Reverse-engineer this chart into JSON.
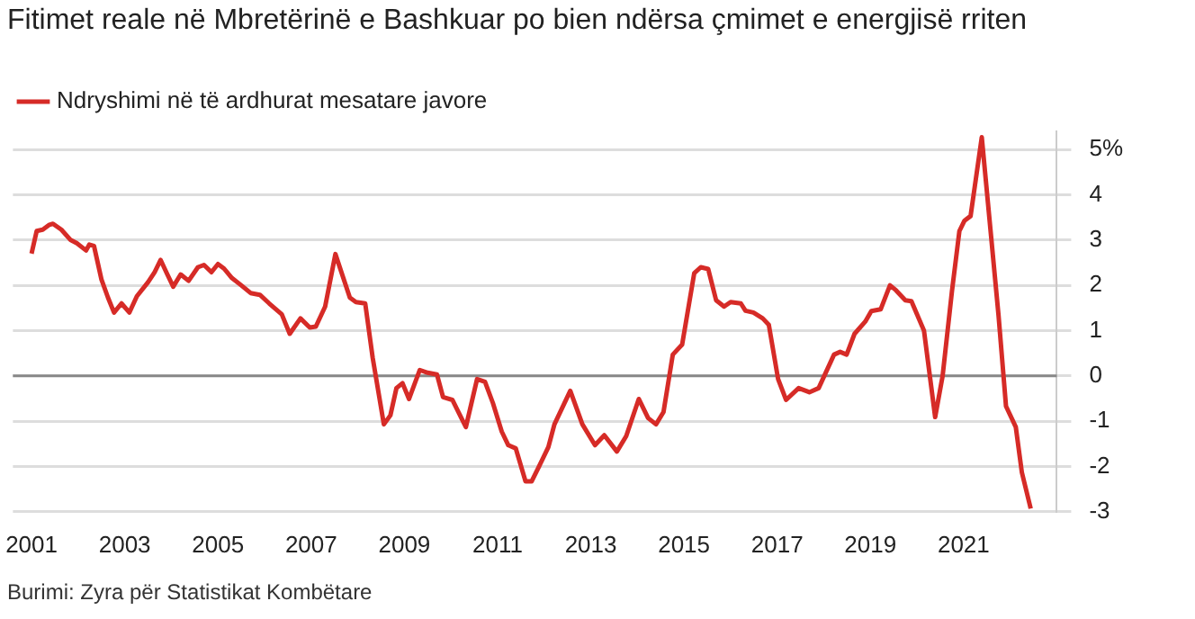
{
  "chart_data": {
    "type": "line",
    "title": "Fitimet reale në Mbretërinë e Bashkuar po bien ndërsa çmimet e energjisë rriten",
    "annotations": [
      "Burimi: Zyra për Statistikat Kombëtare"
    ],
    "series": [
      {
        "name": "Ndryshimi në të ardhurat mesatare javore",
        "color": "#d62b27",
        "x": [
          2001.0,
          2001.11,
          2001.24,
          2001.37,
          2001.46,
          2001.64,
          2001.84,
          2001.97,
          2002.17,
          2002.24,
          2002.34,
          2002.5,
          2002.64,
          2002.77,
          2002.93,
          2003.1,
          2003.26,
          2003.5,
          2003.64,
          2003.77,
          2003.9,
          2004.04,
          2004.2,
          2004.37,
          2004.57,
          2004.7,
          2004.86,
          2005.0,
          2005.13,
          2005.3,
          2005.5,
          2005.7,
          2005.9,
          2006.1,
          2006.37,
          2006.54,
          2006.77,
          2006.97,
          2007.1,
          2007.3,
          2007.52,
          2007.83,
          2007.96,
          2008.16,
          2008.32,
          2008.56,
          2008.7,
          2008.83,
          2008.96,
          2009.1,
          2009.33,
          2009.5,
          2009.7,
          2009.83,
          2010.03,
          2010.32,
          2010.56,
          2010.73,
          2010.9,
          2011.09,
          2011.23,
          2011.39,
          2011.6,
          2011.73,
          2011.89,
          2012.09,
          2012.22,
          2012.56,
          2012.82,
          2013.09,
          2013.29,
          2013.56,
          2013.76,
          2014.03,
          2014.23,
          2014.4,
          2014.56,
          2014.76,
          2014.96,
          2015.22,
          2015.36,
          2015.52,
          2015.69,
          2015.86,
          2016.0,
          2016.22,
          2016.32,
          2016.49,
          2016.69,
          2016.82,
          2017.02,
          2017.19,
          2017.46,
          2017.69,
          2017.89,
          2018.22,
          2018.35,
          2018.49,
          2018.66,
          2018.89,
          2019.02,
          2019.22,
          2019.42,
          2019.55,
          2019.75,
          2019.88,
          2020.15,
          2020.39,
          2020.55,
          2020.75,
          2020.91,
          2021.02,
          2021.15,
          2021.39,
          2021.75,
          2021.91,
          2022.12,
          2022.25,
          2022.44
        ],
        "values": [
          2.7,
          3.2,
          3.23,
          3.33,
          3.36,
          3.23,
          3.0,
          2.93,
          2.77,
          2.9,
          2.87,
          2.13,
          1.73,
          1.4,
          1.6,
          1.4,
          1.76,
          2.07,
          2.29,
          2.56,
          2.27,
          1.97,
          2.24,
          2.1,
          2.4,
          2.45,
          2.29,
          2.47,
          2.37,
          2.16,
          2.0,
          1.83,
          1.79,
          1.6,
          1.36,
          0.93,
          1.27,
          1.07,
          1.09,
          1.53,
          2.69,
          1.73,
          1.63,
          1.6,
          0.4,
          -1.07,
          -0.87,
          -0.27,
          -0.16,
          -0.51,
          0.13,
          0.07,
          0.03,
          -0.47,
          -0.53,
          -1.13,
          -0.07,
          -0.13,
          -0.6,
          -1.23,
          -1.53,
          -1.6,
          -2.33,
          -2.33,
          -2.0,
          -1.57,
          -1.07,
          -0.33,
          -1.07,
          -1.53,
          -1.31,
          -1.67,
          -1.33,
          -0.51,
          -0.93,
          -1.07,
          -0.8,
          0.47,
          0.69,
          2.27,
          2.4,
          2.36,
          1.67,
          1.53,
          1.63,
          1.6,
          1.44,
          1.4,
          1.27,
          1.13,
          -0.07,
          -0.53,
          -0.27,
          -0.36,
          -0.27,
          0.47,
          0.53,
          0.47,
          0.93,
          1.2,
          1.43,
          1.47,
          2.0,
          1.89,
          1.67,
          1.65,
          1.0,
          -0.91,
          0.0,
          1.87,
          3.2,
          3.43,
          3.53,
          5.27,
          1.33,
          -0.67,
          -1.13,
          -2.13,
          -2.93
        ]
      }
    ],
    "xlim": [
      2000.6,
      2023
    ],
    "xticks": [
      2001,
      2003,
      2005,
      2007,
      2009,
      2011,
      2013,
      2015,
      2017,
      2019,
      2021
    ],
    "ylim": [
      -3,
      5.4
    ],
    "yticks": [
      {
        "value": 5,
        "label": "5%"
      },
      4,
      3,
      2,
      1,
      0,
      -1,
      -2,
      -3
    ],
    "ref_lines": [
      {
        "axis": "y",
        "value": 0,
        "color": "#888888"
      }
    ],
    "grid": "y",
    "legend": "top left",
    "marker": "none",
    "line_style": "solid"
  }
}
